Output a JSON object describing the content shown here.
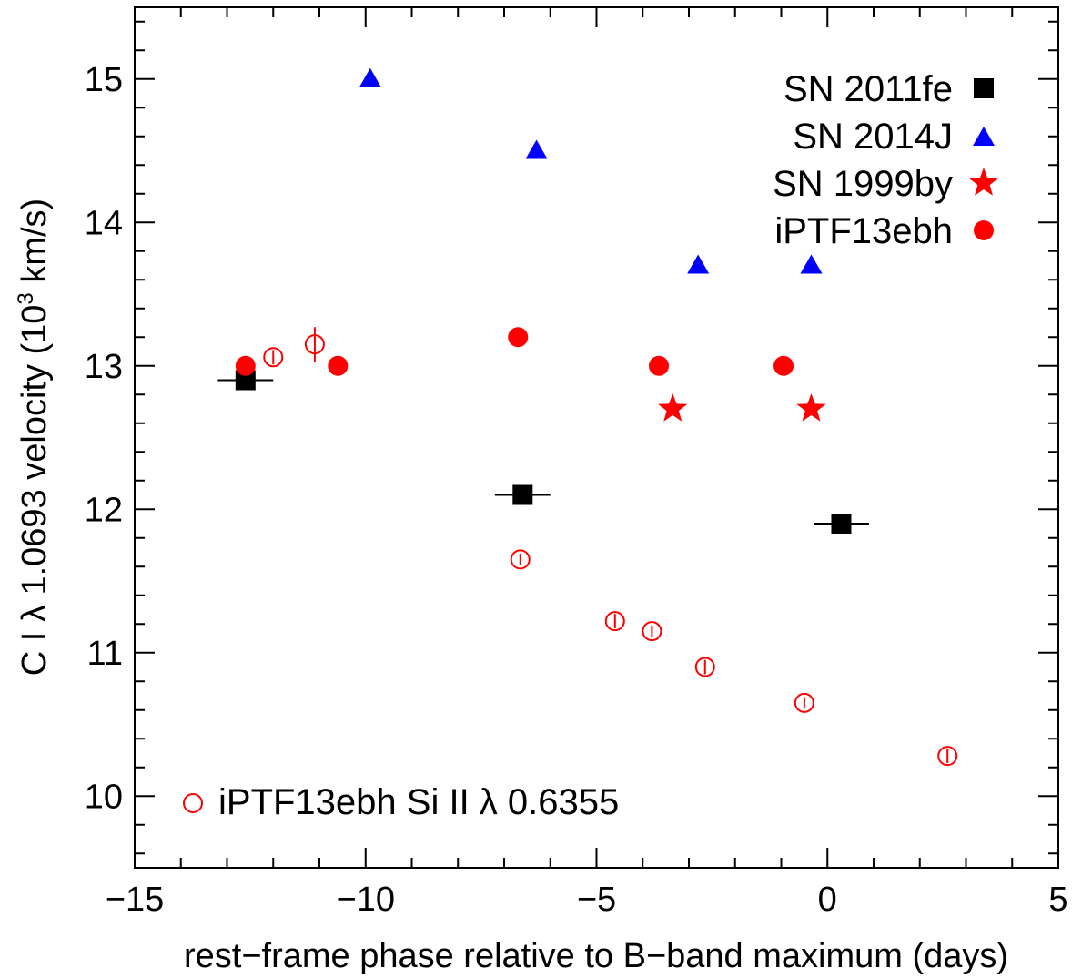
{
  "chart_data": {
    "type": "scatter",
    "xlabel": "rest−frame phase relative to B−band maximum (days)",
    "ylabel": {
      "prefix": "C I λ 1.0693 velocity (10",
      "superscript": "3",
      "suffix": " km/s)"
    },
    "xlim": [
      -15,
      5
    ],
    "ylim": [
      9.5,
      15.5
    ],
    "xticks": [
      -15,
      -10,
      -5,
      0,
      5
    ],
    "xtick_labels": [
      "−15",
      "−10",
      "−5",
      "0",
      "5"
    ],
    "yticks": [
      10,
      11,
      12,
      13,
      14,
      15
    ],
    "ytick_labels": [
      "10",
      "11",
      "12",
      "13",
      "14",
      "15"
    ],
    "legend_position": "top-right",
    "series": [
      {
        "name": "SN 2011fe",
        "marker": "square",
        "color": "#000000",
        "points": [
          {
            "x": -12.6,
            "y": 12.9,
            "xerr": 0.6
          },
          {
            "x": -6.6,
            "y": 12.1,
            "xerr": 0.6
          },
          {
            "x": 0.3,
            "y": 11.9,
            "xerr": 0.6
          }
        ]
      },
      {
        "name": "SN 2014J",
        "marker": "triangle",
        "color": "#0000ff",
        "points": [
          {
            "x": -9.9,
            "y": 15.0
          },
          {
            "x": -6.3,
            "y": 14.5
          },
          {
            "x": -2.8,
            "y": 13.7
          },
          {
            "x": -0.35,
            "y": 13.7
          }
        ]
      },
      {
        "name": "SN 1999by",
        "marker": "star",
        "color": "#ff0000",
        "points": [
          {
            "x": -3.35,
            "y": 12.7
          },
          {
            "x": -0.35,
            "y": 12.7
          }
        ]
      },
      {
        "name": "iPTF13ebh",
        "marker": "circle",
        "color": "#ff0000",
        "points": [
          {
            "x": -12.6,
            "y": 13.0
          },
          {
            "x": -10.6,
            "y": 13.0
          },
          {
            "x": -6.7,
            "y": 13.2
          },
          {
            "x": -3.65,
            "y": 13.0
          },
          {
            "x": -0.95,
            "y": 13.0
          }
        ]
      },
      {
        "name": "iPTF13ebh Si II λ 0.6355",
        "marker": "open-circle",
        "color": "#ff0000",
        "points": [
          {
            "x": -12.0,
            "y": 13.06,
            "yerr": 0.05
          },
          {
            "x": -11.1,
            "y": 13.15,
            "yerr": 0.12
          },
          {
            "x": -6.65,
            "y": 11.65,
            "yerr": 0.04
          },
          {
            "x": -4.6,
            "y": 11.22,
            "yerr": 0.05
          },
          {
            "x": -3.8,
            "y": 11.15,
            "yerr": 0.04
          },
          {
            "x": -2.65,
            "y": 10.9,
            "yerr": 0.05
          },
          {
            "x": -0.5,
            "y": 10.65,
            "yerr": 0.04
          },
          {
            "x": 2.6,
            "y": 10.28,
            "yerr": 0.05
          }
        ]
      }
    ],
    "legend": [
      {
        "label": "SN 2011fe",
        "marker": "square",
        "color": "#000000"
      },
      {
        "label": "SN 2014J",
        "marker": "triangle",
        "color": "#0000ff"
      },
      {
        "label": "SN 1999by",
        "marker": "star",
        "color": "#ff0000"
      },
      {
        "label": "iPTF13ebh",
        "marker": "circle",
        "color": "#ff0000"
      }
    ],
    "bottom_legend": {
      "label": "iPTF13ebh Si II λ 0.6355",
      "marker": "open-circle",
      "color": "#ff0000"
    }
  }
}
